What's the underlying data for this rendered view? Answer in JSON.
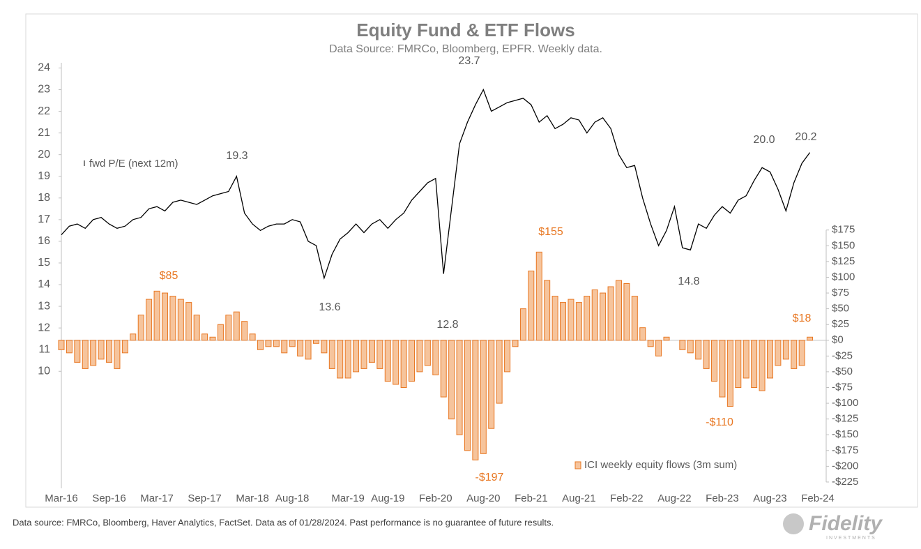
{
  "chart_data": {
    "type": "bar-line",
    "title": "Equity Fund & ETF Flows",
    "subtitle": "Data Source: FMRCo, Bloomberg, EPFR.  Weekly data.",
    "footnote": "Data source: FMRCo, Bloomberg, Haver Analytics, FactSet. Data as of 01/28/2024. Past performance is no guarantee of future results.",
    "logo": "Fidelity",
    "logo_sub": "INVESTMENTS",
    "categories": [
      "Mar-16",
      null,
      null,
      null,
      null,
      null,
      "Sep-16",
      null,
      null,
      null,
      null,
      null,
      "Mar-17",
      null,
      null,
      null,
      null,
      null,
      "Sep-17",
      null,
      null,
      null,
      null,
      null,
      "Mar-18",
      null,
      null,
      null,
      null,
      "Aug-18",
      null,
      null,
      null,
      null,
      null,
      null,
      "Mar-19",
      null,
      null,
      null,
      null,
      "Aug-19",
      null,
      null,
      null,
      null,
      null,
      "Feb-20",
      null,
      null,
      null,
      null,
      null,
      "Aug-20",
      null,
      null,
      null,
      null,
      null,
      "Feb-21",
      null,
      null,
      null,
      null,
      null,
      "Aug-21",
      null,
      null,
      null,
      null,
      null,
      "Feb-22",
      null,
      null,
      null,
      null,
      null,
      "Aug-22",
      null,
      null,
      null,
      null,
      null,
      "Feb-23",
      null,
      null,
      null,
      null,
      null,
      "Aug-23",
      null,
      null,
      null,
      null,
      null,
      "Feb-24"
    ],
    "series": [
      {
        "name": "fwd P/E (next 12m)",
        "color": "#000000",
        "kind": "line",
        "axis": "y",
        "values": [
          16.3,
          16.7,
          16.8,
          16.6,
          17.0,
          17.1,
          16.8,
          16.6,
          16.7,
          17.0,
          17.1,
          17.5,
          17.6,
          17.4,
          17.8,
          17.9,
          17.8,
          17.7,
          17.9,
          18.1,
          18.2,
          18.3,
          19.0,
          17.3,
          16.8,
          16.5,
          16.7,
          16.8,
          16.8,
          17.0,
          16.9,
          16.0,
          15.8,
          14.3,
          15.4,
          16.1,
          16.4,
          16.8,
          16.4,
          16.8,
          17.0,
          16.6,
          17.0,
          17.3,
          17.9,
          18.3,
          18.7,
          18.9,
          14.5,
          17.5,
          20.5,
          21.5,
          22.3,
          23.0,
          22.0,
          22.2,
          22.4,
          22.5,
          22.6,
          22.3,
          21.5,
          21.8,
          21.2,
          21.4,
          21.7,
          21.6,
          21.0,
          21.5,
          21.7,
          21.2,
          20.0,
          19.4,
          19.5,
          18.0,
          16.8,
          15.8,
          16.5,
          17.6,
          15.7,
          15.6,
          16.8,
          16.6,
          17.2,
          17.6,
          17.3,
          17.9,
          18.1,
          18.8,
          19.4,
          19.2,
          18.4,
          17.4,
          18.7,
          19.6,
          20.1,
          null
        ]
      },
      {
        "name": "ICI weekly equity flows (3m sum)",
        "color": "#e87722",
        "kind": "bar",
        "axis": "y2",
        "values": [
          -15,
          -20,
          -35,
          -45,
          -40,
          -30,
          -35,
          -45,
          -20,
          10,
          40,
          65,
          78,
          75,
          70,
          65,
          60,
          40,
          10,
          5,
          25,
          40,
          45,
          30,
          10,
          -15,
          -10,
          -10,
          -20,
          -10,
          -25,
          -30,
          -5,
          -20,
          -45,
          -60,
          -60,
          -50,
          -45,
          -35,
          -45,
          -65,
          -70,
          -75,
          -65,
          -50,
          -40,
          -55,
          -90,
          -125,
          -150,
          -175,
          -190,
          -180,
          -140,
          -100,
          -50,
          -10,
          50,
          110,
          140,
          95,
          70,
          60,
          65,
          60,
          70,
          80,
          75,
          85,
          95,
          90,
          70,
          20,
          -10,
          -25,
          5,
          0,
          -15,
          -20,
          -30,
          -45,
          -65,
          -90,
          -105,
          -75,
          -60,
          -75,
          -80,
          -60,
          -40,
          -30,
          -45,
          -40,
          5,
          null
        ]
      }
    ],
    "annotations": [
      "19.3",
      "13.6",
      "12.8",
      "23.7",
      "14.8",
      "20.0",
      "20.2"
    ],
    "flow_annotations": [
      "$85",
      "$155",
      "-$197",
      "-$110",
      "$18"
    ],
    "ylim": [
      4.6,
      24.4
    ],
    "yticks": [
      10,
      11,
      12,
      13,
      14,
      15,
      16,
      17,
      18,
      19,
      20,
      21,
      22,
      23,
      24
    ],
    "y2lim": [
      -235,
      446
    ],
    "y2ticks": [
      {
        "value": 175,
        "label": "$175"
      },
      {
        "value": 150,
        "label": "$150"
      },
      {
        "value": 125,
        "label": "$125"
      },
      {
        "value": 100,
        "label": "$100"
      },
      {
        "value": 75,
        "label": "$75"
      },
      {
        "value": 50,
        "label": "$50"
      },
      {
        "value": 25,
        "label": "$25"
      },
      {
        "value": 0,
        "label": "$0"
      },
      {
        "value": -25,
        "label": "-$25"
      },
      {
        "value": -50,
        "label": "-$50"
      },
      {
        "value": -75,
        "label": "-$75"
      },
      {
        "value": -100,
        "label": "-$100"
      },
      {
        "value": -125,
        "label": "-$125"
      },
      {
        "value": -150,
        "label": "-$150"
      },
      {
        "value": -175,
        "label": "-$175"
      },
      {
        "value": -200,
        "label": "-$200"
      },
      {
        "value": -225,
        "label": "-$225"
      }
    ]
  }
}
